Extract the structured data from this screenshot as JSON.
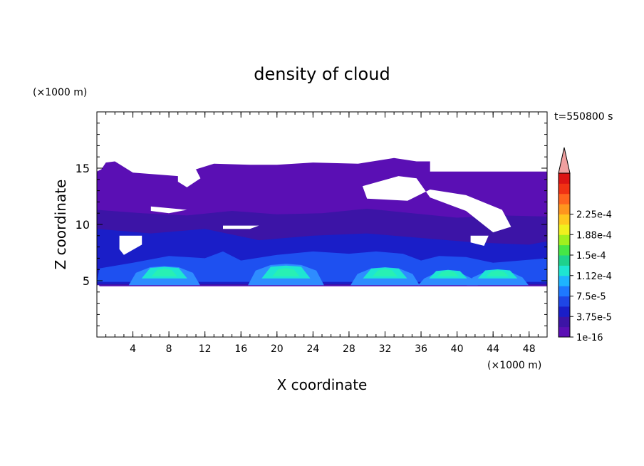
{
  "chart_data": {
    "type": "heatmap",
    "title": "density of cloud",
    "xlabel": "X coordinate",
    "ylabel": "Z coordinate",
    "x_unit": "(×1000 m)",
    "y_unit": "(×1000 m)",
    "time_label": "t=550800 s",
    "xlim": [
      0,
      50
    ],
    "ylim": [
      0,
      20
    ],
    "x_ticks": [
      4,
      8,
      12,
      16,
      20,
      24,
      28,
      32,
      36,
      40,
      44,
      48
    ],
    "y_ticks": [
      5,
      10,
      15
    ],
    "colorbar": {
      "labels": [
        "1e-16",
        "3.75e-5",
        "7.5e-5",
        "1.12e-4",
        "1.5e-4",
        "1.88e-4",
        "2.25e-4"
      ],
      "colors": [
        "#5a0fb4",
        "#3c14a6",
        "#1a1ec8",
        "#1e46e6",
        "#1e78ff",
        "#1eb4ff",
        "#1ee6d2",
        "#1ed28c",
        "#46e646",
        "#a0f01e",
        "#f0f01e",
        "#ffc81e",
        "#ff961e",
        "#ff641e",
        "#f03214",
        "#dc1414",
        "#f0a0a0"
      ]
    },
    "field_colors": {
      "upper_layer": "#5a0fb4",
      "mid_layer": "#3c14a6",
      "inner": "#1a1ec8",
      "blue": "#1e50f0",
      "light_blue": "#2e8cff",
      "cyan": "#1ee6d2",
      "green_cyan": "#28f0b4"
    },
    "cloud_cores": [
      {
        "x_center": 7.5,
        "z_top": 6.3,
        "peak": "1.12e-4"
      },
      {
        "x_center": 21.0,
        "z_top": 6.5,
        "peak": "1.12e-4"
      },
      {
        "x_center": 32.0,
        "z_top": 6.2,
        "peak": "1.12e-4"
      },
      {
        "x_center": 39.0,
        "z_top": 5.8,
        "peak": "7.5e-5"
      },
      {
        "x_center": 44.5,
        "z_top": 5.9,
        "peak": "1.12e-4"
      }
    ]
  }
}
